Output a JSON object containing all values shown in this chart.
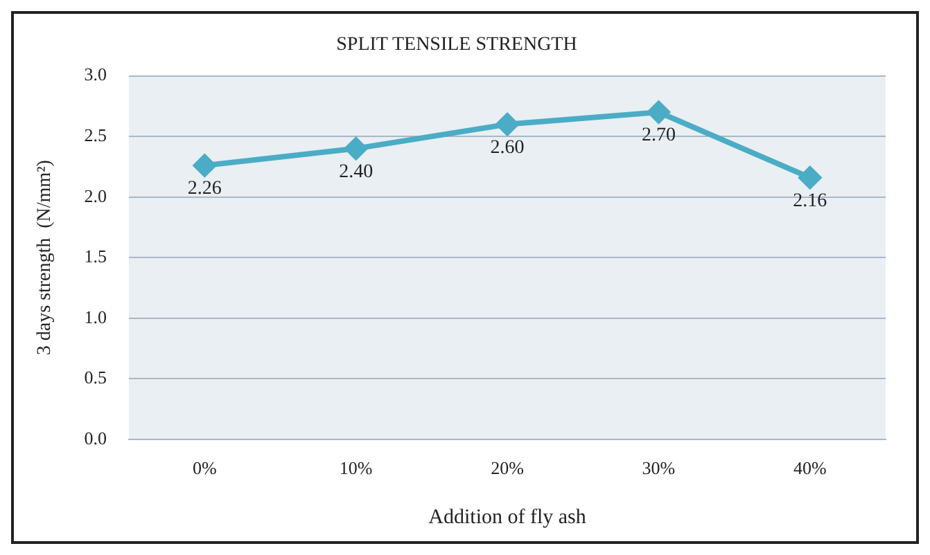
{
  "chart_data": {
    "type": "line",
    "title": "SPLIT TENSILE STRENGTH",
    "xlabel": "Addition of fly ash",
    "ylabel": "3 days strength  (N/mm²)",
    "categories": [
      "0%",
      "10%",
      "20%",
      "30%",
      "40%"
    ],
    "series": [
      {
        "color": "#4bacc6",
        "values": [
          2.26,
          2.4,
          2.6,
          2.7,
          2.16
        ],
        "value_labels": [
          "2.26",
          "2.40",
          "2.60",
          "2.70",
          "2.16"
        ]
      }
    ],
    "ylim": [
      0,
      3
    ],
    "yticks": [
      {
        "value": 0,
        "label": "0.0"
      },
      {
        "value": 0.5,
        "label": "0.5"
      },
      {
        "value": 1,
        "label": "1.0"
      },
      {
        "value": 1.5,
        "label": "1.5"
      },
      {
        "value": 2,
        "label": "2.0"
      },
      {
        "value": 2.5,
        "label": "2.5"
      },
      {
        "value": 3,
        "label": "3.0"
      }
    ],
    "grid": "y",
    "legend": false,
    "marker": "diamond",
    "line_style": "solid"
  }
}
